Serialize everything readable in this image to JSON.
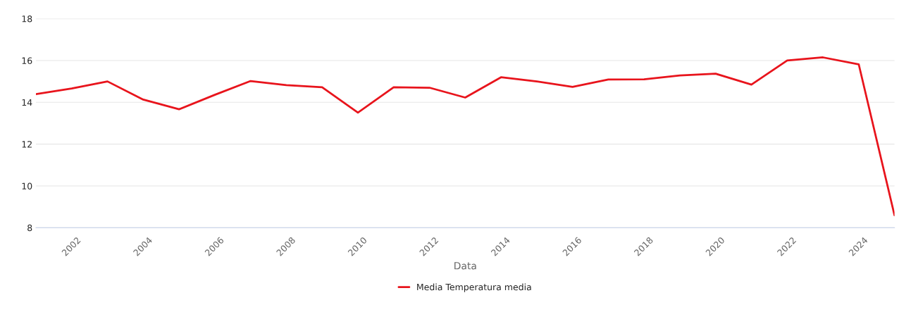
{
  "chart_data": {
    "type": "line",
    "xlabel": "Data",
    "x": [
      2001,
      2002,
      2003,
      2004,
      2005,
      2006,
      2007,
      2008,
      2009,
      2010,
      2011,
      2012,
      2013,
      2014,
      2015,
      2016,
      2017,
      2018,
      2019,
      2020,
      2021,
      2022,
      2023,
      2024,
      2025
    ],
    "series": [
      {
        "name": "Media Temperatura media",
        "color": "#e8141c",
        "values": [
          14.39,
          14.66,
          15.0,
          14.13,
          13.67,
          14.36,
          15.02,
          14.82,
          14.72,
          13.51,
          14.72,
          14.7,
          14.23,
          15.2,
          15.0,
          14.74,
          15.09,
          15.1,
          15.29,
          15.37,
          14.85,
          16.0,
          16.15,
          15.82,
          8.6
        ]
      }
    ],
    "xlim": [
      2001,
      2025
    ],
    "xticks": [
      2002,
      2004,
      2006,
      2008,
      2010,
      2012,
      2014,
      2016,
      2018,
      2020,
      2022,
      2024
    ],
    "ylim": [
      8,
      18
    ],
    "yticks": [
      8,
      10,
      12,
      14,
      16,
      18
    ],
    "grid": "y",
    "legend": "bottom",
    "marker": "none",
    "line_style": "solid"
  }
}
